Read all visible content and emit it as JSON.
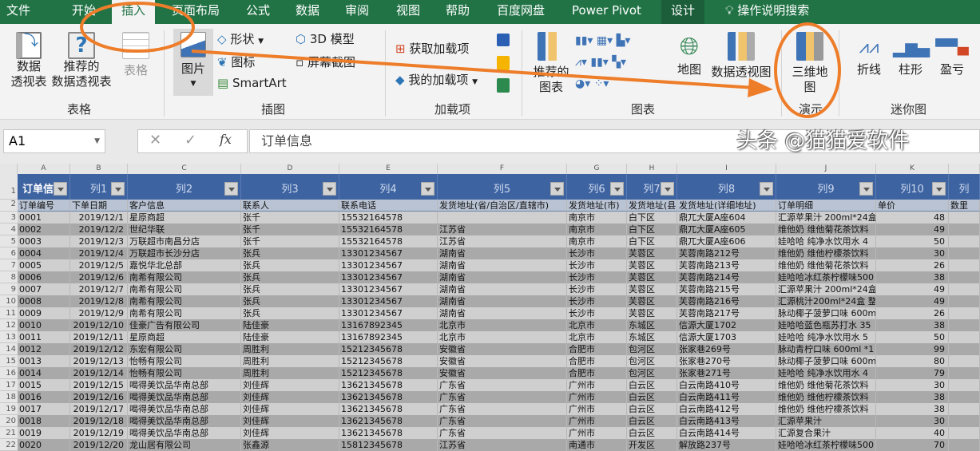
{
  "tabs": [
    "文件",
    "开始",
    "插入",
    "页面布局",
    "公式",
    "数据",
    "审阅",
    "视图",
    "帮助",
    "百度网盘",
    "Power Pivot",
    "设计"
  ],
  "active_tab": "插入",
  "search_label": "操作说明搜索",
  "ribbon": {
    "tables": {
      "pivot": "数据\n透视表",
      "recommended_pivot": "推荐的\n数据透视表",
      "table": "表格",
      "group": "表格"
    },
    "illustrations": {
      "pictures": "图片",
      "shapes": "形状",
      "icons": "图标",
      "smartart": "SmartArt",
      "model3d": "3D 模型",
      "screenshot": "屏幕截图",
      "group": "插图"
    },
    "addins": {
      "get": "获取加载项",
      "my": "我的加载项",
      "group": "加载项"
    },
    "charts": {
      "recommended": "推荐的\n图表",
      "maps": "地图",
      "pivotchart": "数据透视图",
      "group": "图表"
    },
    "tours": {
      "map3d": "三维地\n图",
      "group": "演示"
    },
    "sparklines": {
      "line": "折线",
      "column": "柱形",
      "winloss": "盈亏",
      "group": "迷你图"
    }
  },
  "formula_bar": {
    "name_box": "A1",
    "fx": "fx",
    "value": "订单信息"
  },
  "columns": [
    "A",
    "B",
    "C",
    "D",
    "E",
    "F",
    "G",
    "H",
    "I",
    "J",
    "K",
    ""
  ],
  "header_row": [
    "订单信息",
    "列1",
    "列2",
    "列3",
    "列4",
    "列5",
    "列6",
    "列7",
    "列8",
    "列9",
    "列10",
    "列"
  ],
  "field_row": [
    "订单编号",
    "下单日期",
    "客户信息",
    "联系人",
    "联系电话",
    "发货地址(省/自治区/直辖市)",
    "发货地址(市)",
    "发货地址(县",
    "发货地址(详细地址)",
    "订单明细",
    "单价",
    "数里"
  ],
  "rows": [
    [
      "0001",
      "2019/12/1",
      "星原商超",
      "张千",
      "15532164578",
      "",
      "南京市",
      "白下区",
      "鼎兀大厦A座604",
      "汇源苹果汁 200ml*24盒",
      "48"
    ],
    [
      "0002",
      "2019/12/2",
      "世纪华联",
      "张千",
      "15532164578",
      "江苏省",
      "南京市",
      "白下区",
      "鼎兀大厦A座605",
      "维他奶 维他菊花茶饮料",
      "49"
    ],
    [
      "0003",
      "2019/12/3",
      "万联超市南昌分店",
      "张千",
      "15532164578",
      "江苏省",
      "南京市",
      "白下区",
      "鼎兀大厦A座606",
      "娃哈哈 纯净水饮用水 4",
      "50"
    ],
    [
      "0004",
      "2019/12/4",
      "万联超市长沙分店",
      "张兵",
      "13301234567",
      "湖南省",
      "长沙市",
      "芙蓉区",
      "芙蓉南路212号",
      "维他奶 维他柠檬茶饮料",
      "30"
    ],
    [
      "0005",
      "2019/12/5",
      "嘉悦华北总部",
      "张兵",
      "13301234567",
      "湖南省",
      "长沙市",
      "芙蓉区",
      "芙蓉南路213号",
      "维他奶 维他菊花茶饮料",
      "26"
    ],
    [
      "0006",
      "2019/12/6",
      "南希有限公司",
      "张兵",
      "13301234567",
      "湖南省",
      "长沙市",
      "芙蓉区",
      "芙蓉南路214号",
      "娃哈哈冰红茶柠檬味500",
      "38"
    ],
    [
      "0007",
      "2019/12/7",
      "南希有限公司",
      "张兵",
      "13301234567",
      "湖南省",
      "长沙市",
      "芙蓉区",
      "芙蓉南路215号",
      "汇源苹果汁 200ml*24盒",
      "49"
    ],
    [
      "0008",
      "2019/12/8",
      "南希有限公司",
      "张兵",
      "13301234567",
      "湖南省",
      "长沙市",
      "芙蓉区",
      "芙蓉南路216号",
      "汇源桃汁200ml*24盒 整",
      "49"
    ],
    [
      "0009",
      "2019/12/9",
      "南希有限公司",
      "张兵",
      "13301234567",
      "湖南省",
      "长沙市",
      "芙蓉区",
      "芙蓉南路217号",
      "脉动椰子菠萝口味 600m",
      "26"
    ],
    [
      "0010",
      "2019/12/10",
      "佳豪广告有限公司",
      "陆佳豪",
      "13167892345",
      "北京市",
      "北京市",
      "东城区",
      "信源大厦1702",
      "娃哈哈蓝色瓶苏打水 35",
      "38"
    ],
    [
      "0011",
      "2019/12/11",
      "星原商超",
      "陆佳豪",
      "13167892345",
      "北京市",
      "北京市",
      "东城区",
      "信源大厦1703",
      "娃哈哈 纯净水饮用水 5",
      "50"
    ],
    [
      "0012",
      "2019/12/12",
      "东宏有限公司",
      "周胜利",
      "15212345678",
      "安徽省",
      "合肥市",
      "包河区",
      "张家巷269号",
      "脉动青柠口味 600ml *1",
      "99"
    ],
    [
      "0013",
      "2019/12/13",
      "怡畅有限公司",
      "周胜利",
      "15212345678",
      "安徽省",
      "合肥市",
      "包河区",
      "张家巷270号",
      "脉动椰子菠萝口味 600m",
      "80"
    ],
    [
      "0014",
      "2019/12/14",
      "怡畅有限公司",
      "周胜利",
      "15212345678",
      "安徽省",
      "合肥市",
      "包河区",
      "张家巷271号",
      "娃哈哈 纯净水饮用水 4",
      "79"
    ],
    [
      "0015",
      "2019/12/15",
      "喝得美饮品华南总部",
      "刘佳辉",
      "13621345678",
      "广东省",
      "广州市",
      "白云区",
      "白云南路410号",
      "维他奶 维他菊花茶饮料",
      "30"
    ],
    [
      "0016",
      "2019/12/16",
      "喝得美饮品华南总部",
      "刘佳辉",
      "13621345678",
      "广东省",
      "广州市",
      "白云区",
      "白云南路411号",
      "维他奶 维他柠檬茶饮料",
      "38"
    ],
    [
      "0017",
      "2019/12/17",
      "喝得美饮品华南总部",
      "刘佳辉",
      "13621345678",
      "广东省",
      "广州市",
      "白云区",
      "白云南路412号",
      "维他奶 维他柠檬茶饮料",
      "38"
    ],
    [
      "0018",
      "2019/12/18",
      "喝得美饮品华南总部",
      "刘佳辉",
      "13621345678",
      "广东省",
      "广州市",
      "白云区",
      "白云南路413号",
      "汇源苹果汁",
      "30"
    ],
    [
      "0019",
      "2019/12/19",
      "喝得美饮品华南总部",
      "刘佳辉",
      "13621345678",
      "广东省",
      "广州市",
      "白云区",
      "白云南路414号",
      "汇源复合果汁",
      "40"
    ],
    [
      "0020",
      "2019/12/20",
      "龙山居有限公司",
      "张鑫源",
      "15812345678",
      "江苏省",
      "南通市",
      "开发区",
      "解放路237号",
      "娃哈哈冰红茶柠檬味500",
      "70"
    ]
  ],
  "watermark": "头条 @猫猫爱软件",
  "colors": {
    "tab_bar": "#217346",
    "table_header": "#3e63a1",
    "annotation": "#ee7d2a"
  }
}
